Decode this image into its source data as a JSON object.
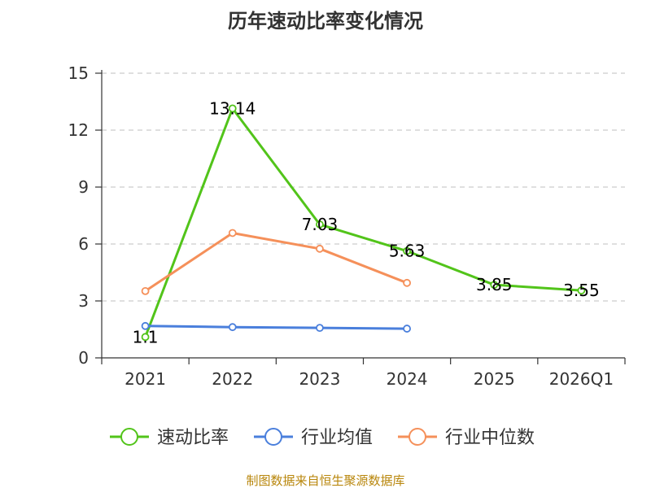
{
  "chart_data": {
    "type": "line",
    "title": "历年速动比率变化情况",
    "categories": [
      "2021",
      "2022",
      "2023",
      "2024",
      "2025",
      "2026Q1"
    ],
    "ylim": [
      0,
      15
    ],
    "yticks": [
      0,
      3,
      6,
      9,
      12,
      15
    ],
    "ytick_labels": [
      "0",
      "3",
      "6",
      "9",
      "12",
      "15"
    ],
    "grid": true,
    "legend_position": "bottom",
    "series": [
      {
        "name": "速动比率",
        "color": "#52c41a",
        "values": [
          1.1,
          13.14,
          7.03,
          5.63,
          3.85,
          3.55
        ],
        "labels": [
          "1.1",
          "13.14",
          "7.03",
          "5.63",
          "3.85",
          "3.55"
        ]
      },
      {
        "name": "行业均值",
        "color": "#4a7fdc",
        "values": [
          1.68,
          1.62,
          1.58,
          1.54,
          null,
          null
        ]
      },
      {
        "name": "行业中位数",
        "color": "#f5905a",
        "values": [
          3.52,
          6.58,
          5.75,
          3.95,
          null,
          null
        ]
      }
    ]
  },
  "source_text": "制图数据来自恒生聚源数据库"
}
